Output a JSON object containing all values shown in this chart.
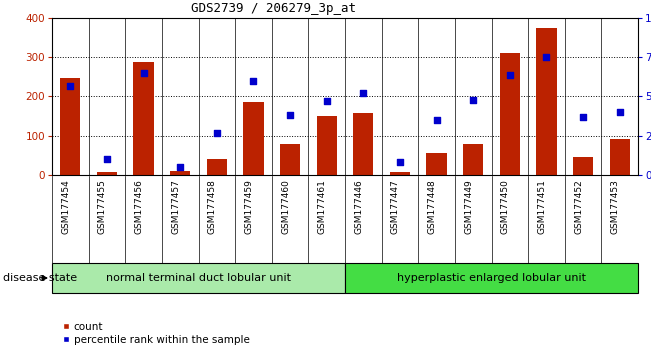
{
  "title": "GDS2739 / 206279_3p_at",
  "categories": [
    "GSM177454",
    "GSM177455",
    "GSM177456",
    "GSM177457",
    "GSM177458",
    "GSM177459",
    "GSM177460",
    "GSM177461",
    "GSM177446",
    "GSM177447",
    "GSM177448",
    "GSM177449",
    "GSM177450",
    "GSM177451",
    "GSM177452",
    "GSM177453"
  ],
  "counts": [
    248,
    8,
    287,
    10,
    40,
    185,
    78,
    150,
    157,
    8,
    57,
    80,
    310,
    375,
    47,
    92
  ],
  "percentiles": [
    57,
    10,
    65,
    5,
    27,
    60,
    38,
    47,
    52,
    8,
    35,
    48,
    64,
    75,
    37,
    40
  ],
  "group1_label": "normal terminal duct lobular unit",
  "group2_label": "hyperplastic enlarged lobular unit",
  "group1_count": 8,
  "group2_count": 8,
  "bar_color": "#bb2200",
  "dot_color": "#0000cc",
  "ylim_left": [
    0,
    400
  ],
  "ylim_right": [
    0,
    100
  ],
  "left_ticks": [
    0,
    100,
    200,
    300,
    400
  ],
  "right_ticks": [
    0,
    25,
    50,
    75,
    100
  ],
  "right_tick_labels": [
    "0",
    "25",
    "50",
    "75",
    "100%"
  ],
  "bg_color": "#ffffff",
  "plot_bg": "#ffffff",
  "bar_width": 0.55,
  "disease_state_label": "disease state",
  "legend_count_label": "count",
  "legend_pct_label": "percentile rank within the sample",
  "group1_bg": "#aaeaaa",
  "group2_bg": "#44dd44",
  "tick_area_bg": "#cccccc",
  "title_fontsize": 9
}
